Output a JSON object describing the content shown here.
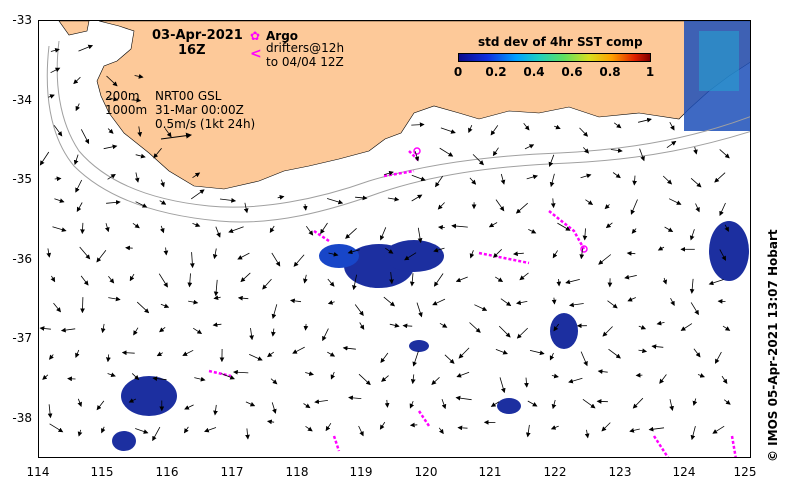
{
  "map": {
    "date_title": "03-Apr-2021",
    "time_title": "16Z",
    "argo_label": "Argo",
    "drifters_label": "drifters@12h",
    "drifters_to_label": "to 04/04 12Z",
    "contour_200": "200m",
    "contour_1000": "1000m",
    "product_label": "NRT00 GSL",
    "product_date": "31-Mar 00:00Z",
    "scale_arrow_label": "0.5m/s (1kt 24h)",
    "credit": "© IMOS 05-Apr-2021 13:07 Hobart",
    "colors": {
      "land": "#fdc999",
      "ocean": "#ffffff",
      "argo": "#ff00ff",
      "drifter": "#ff00ff",
      "contour": "#a0a0a0"
    },
    "x_ticks": [
      "114",
      "115",
      "116",
      "117",
      "118",
      "119",
      "120",
      "121",
      "122",
      "123",
      "124",
      "125"
    ],
    "y_ticks": [
      "-33",
      "-34",
      "-35",
      "-36",
      "-37",
      "-38"
    ],
    "colorbar": {
      "title": "std dev of 4hr SST comp",
      "ticks": [
        "0",
        "0.2",
        "0.4",
        "0.6",
        "0.8",
        "1"
      ],
      "range": [
        0,
        1
      ]
    }
  }
}
